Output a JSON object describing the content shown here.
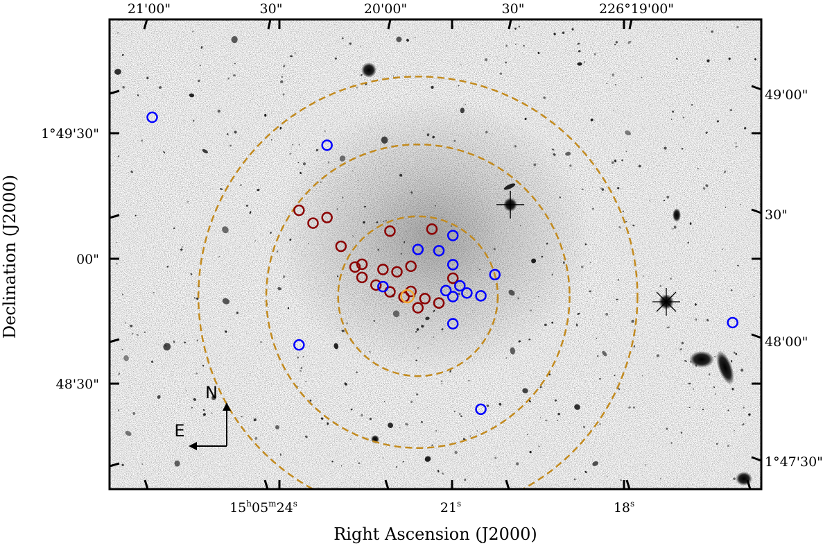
{
  "chart_data": {
    "type": "scatter",
    "title": "",
    "xlabel": "Right Ascension (J2000)",
    "ylabel": "Declination (J2000)",
    "xlim_pixel_span_note": "",
    "bottom_ticks": [
      {
        "label": "15h05m24s",
        "h": "15",
        "m": "05",
        "s": "24",
        "value_s": 24
      },
      {
        "label": "21s",
        "s": "21",
        "value_s": 21
      },
      {
        "label": "18s",
        "s": "18",
        "value_s": 18
      }
    ],
    "top_ticks": [
      {
        "label": "21'00\""
      },
      {
        "label": "30\""
      },
      {
        "label": "20'00\""
      },
      {
        "label": "30\""
      },
      {
        "label": "226°19'00\""
      }
    ],
    "left_ticks": [
      {
        "label": "1°49'30\""
      },
      {
        "label": "00\""
      },
      {
        "label": "48'30\""
      }
    ],
    "right_ticks": [
      {
        "label": "49'00\""
      },
      {
        "label": "30\""
      },
      {
        "label": "48'00\""
      },
      {
        "label": "1°47'30\""
      }
    ],
    "ra_range_s": [
      25.31,
      15.99
    ],
    "dec_range_arcsec": [
      -48.3,
      69.3
    ],
    "center": {
      "ra_s": 20.9,
      "dec_arcsec": 0.0
    },
    "circles_radius_arcsec": [
      20,
      38,
      55
    ],
    "compass": {
      "north": "N",
      "east": "E"
    },
    "series": [
      {
        "name": "",
        "color": "#8b0000",
        "points": [
          [
            22.6,
            21.5
          ],
          [
            22.4,
            18.3
          ],
          [
            22.2,
            19.7
          ],
          [
            22.0,
            12.5
          ],
          [
            21.8,
            7.3
          ],
          [
            21.7,
            8.0
          ],
          [
            21.7,
            4.7
          ],
          [
            21.5,
            2.8
          ],
          [
            21.4,
            6.7
          ],
          [
            21.3,
            1.1
          ],
          [
            21.3,
            16.3
          ],
          [
            21.2,
            6.1
          ],
          [
            21.1,
            -0.2
          ],
          [
            21.0,
            7.5
          ],
          [
            20.9,
            -2.9
          ],
          [
            21.0,
            1.2
          ],
          [
            20.8,
            -0.6
          ],
          [
            20.7,
            16.8
          ],
          [
            20.4,
            4.5
          ],
          [
            20.6,
            -1.7
          ]
        ]
      },
      {
        "name": "",
        "color": "#0000ff",
        "points": [
          [
            24.7,
            44.8
          ],
          [
            22.2,
            37.8
          ],
          [
            22.6,
            -12.2
          ],
          [
            21.4,
            2.4
          ],
          [
            20.9,
            11.7
          ],
          [
            20.6,
            11.4
          ],
          [
            20.4,
            15.2
          ],
          [
            20.4,
            7.9
          ],
          [
            20.3,
            2.6
          ],
          [
            20.4,
            -0.1
          ],
          [
            20.5,
            1.4
          ],
          [
            20.2,
            0.8
          ],
          [
            20.0,
            0.1
          ],
          [
            19.8,
            5.4
          ],
          [
            20.4,
            -6.9
          ],
          [
            20.0,
            -28.3
          ],
          [
            16.4,
            -6.6
          ]
        ]
      },
      {
        "name": "",
        "color": "#f2a733",
        "points": [
          [
            21.05,
            0.0
          ]
        ]
      }
    ]
  }
}
